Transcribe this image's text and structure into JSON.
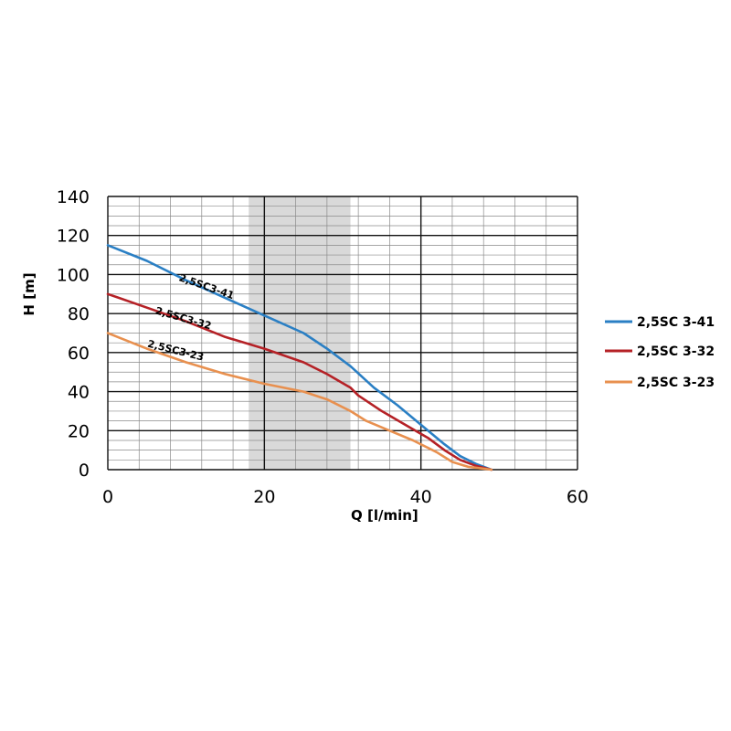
{
  "chart_data": {
    "type": "line",
    "title": "",
    "xlabel": "Q [l/min]",
    "ylabel": "H [m]",
    "xlim": [
      0,
      60
    ],
    "ylim": [
      0,
      140
    ],
    "x_ticks": [
      "0",
      "20",
      "40",
      "60"
    ],
    "y_ticks": [
      "0",
      "20",
      "40",
      "60",
      "80",
      "100",
      "120",
      "140"
    ],
    "grid": true,
    "legend_position": "right",
    "highlight_band": {
      "x_from": 18,
      "x_to": 31,
      "color": "#d9d9d9"
    },
    "series": [
      {
        "name": "2,5SC 3-41",
        "curve_label": "2,5SC3-41",
        "color": "#2a7fc4",
        "label_at": [
          9,
          97
        ],
        "label_angle": -19,
        "points": [
          [
            0,
            115
          ],
          [
            5,
            107
          ],
          [
            10,
            97
          ],
          [
            15,
            88
          ],
          [
            20,
            79
          ],
          [
            25,
            70
          ],
          [
            28,
            62
          ],
          [
            31,
            53
          ],
          [
            34,
            42
          ],
          [
            37,
            33
          ],
          [
            40,
            23
          ],
          [
            43,
            13
          ],
          [
            45,
            7
          ],
          [
            47,
            3
          ],
          [
            49,
            0
          ]
        ]
      },
      {
        "name": "2,5SC 3-32",
        "curve_label": "2,5SC3-32",
        "color": "#b52126",
        "label_at": [
          6,
          80
        ],
        "label_angle": -16,
        "points": [
          [
            0,
            90
          ],
          [
            5,
            83
          ],
          [
            10,
            76
          ],
          [
            15,
            68
          ],
          [
            20,
            62
          ],
          [
            25,
            55
          ],
          [
            28,
            49
          ],
          [
            31,
            42
          ],
          [
            32,
            38
          ],
          [
            35,
            30
          ],
          [
            38,
            23
          ],
          [
            41,
            16
          ],
          [
            43,
            10
          ],
          [
            45,
            5
          ],
          [
            47,
            2
          ],
          [
            49,
            0
          ]
        ]
      },
      {
        "name": "2,5SC 3-23",
        "curve_label": "2,5SC3-23",
        "color": "#e8904f",
        "label_at": [
          5,
          63
        ],
        "label_angle": -14,
        "points": [
          [
            0,
            70
          ],
          [
            5,
            62
          ],
          [
            10,
            55
          ],
          [
            15,
            49
          ],
          [
            20,
            44
          ],
          [
            25,
            40
          ],
          [
            28,
            36
          ],
          [
            31,
            30
          ],
          [
            33,
            25
          ],
          [
            36,
            20
          ],
          [
            39,
            15
          ],
          [
            42,
            9
          ],
          [
            44,
            4
          ],
          [
            46,
            1.5
          ],
          [
            48,
            0.5
          ],
          [
            49,
            0
          ]
        ]
      }
    ]
  }
}
